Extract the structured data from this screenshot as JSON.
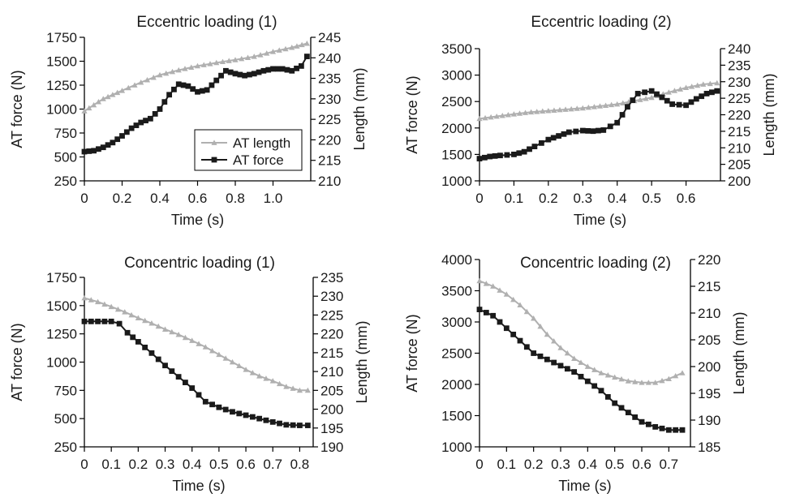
{
  "chart_data": [
    {
      "type": "line",
      "title": "Eccentric loading (1)",
      "xlabel": "Time (s)",
      "ylabel": "AT force (N)",
      "y2label": "Length (mm)",
      "xlim": [
        0,
        1.2
      ],
      "ylim": [
        250,
        1750
      ],
      "y2lim": [
        210,
        245
      ],
      "xticks": [
        "0",
        "0.2",
        "0.4",
        "0.6",
        "0.8",
        "1.0"
      ],
      "xtick_values": [
        0,
        0.2,
        0.4,
        0.6,
        0.8,
        1.0
      ],
      "yticks": [
        "250",
        "500",
        "750",
        "1000",
        "1250",
        "1500",
        "1750"
      ],
      "yticks2": [
        "210",
        "215",
        "220",
        "225",
        "230",
        "235",
        "240",
        "245"
      ],
      "legend": {
        "placement": "center",
        "entries": [
          "AT length",
          "AT force"
        ]
      },
      "series": [
        {
          "name": "AT length",
          "axis": "right",
          "color": "#b0b0b0",
          "marker": "triangle",
          "x": [
            0,
            0.05,
            0.1,
            0.15,
            0.2,
            0.3,
            0.4,
            0.5,
            0.6,
            0.7,
            0.8,
            0.9,
            1.0,
            1.1,
            1.18
          ],
          "y": [
            227,
            228.5,
            230,
            231,
            232,
            234,
            235.8,
            237,
            238,
            238.8,
            239.5,
            240.3,
            241.5,
            242.5,
            243.5
          ]
        },
        {
          "name": "AT force",
          "axis": "left",
          "color": "#1a1a1a",
          "marker": "square",
          "x": [
            0,
            0.05,
            0.1,
            0.15,
            0.2,
            0.25,
            0.3,
            0.35,
            0.4,
            0.45,
            0.5,
            0.55,
            0.6,
            0.65,
            0.7,
            0.75,
            0.8,
            0.85,
            0.9,
            0.95,
            1.0,
            1.05,
            1.1,
            1.15,
            1.18
          ],
          "y": [
            555,
            565,
            600,
            650,
            720,
            800,
            860,
            900,
            1000,
            1150,
            1260,
            1240,
            1180,
            1200,
            1300,
            1400,
            1370,
            1350,
            1370,
            1400,
            1420,
            1420,
            1400,
            1450,
            1550
          ]
        }
      ]
    },
    {
      "type": "line",
      "title": "Eccentric loading (2)",
      "xlabel": "Time (s)",
      "ylabel": "AT force (N)",
      "y2label": "Length (mm)",
      "xlim": [
        0,
        0.7
      ],
      "ylim": [
        1000,
        3500
      ],
      "y2lim": [
        200,
        240
      ],
      "xticks": [
        "0",
        "0.1",
        "0.2",
        "0.3",
        "0.4",
        "0.5",
        "0.6"
      ],
      "xtick_values": [
        0,
        0.1,
        0.2,
        0.3,
        0.4,
        0.5,
        0.6
      ],
      "yticks": [
        "1000",
        "1500",
        "2000",
        "2500",
        "3000",
        "3500"
      ],
      "yticks2": [
        "200",
        "205",
        "210",
        "215",
        "220",
        "225",
        "230",
        "235",
        "240"
      ],
      "series": [
        {
          "name": "AT length",
          "axis": "right",
          "color": "#b0b0b0",
          "marker": "triangle",
          "x": [
            0,
            0.05,
            0.1,
            0.15,
            0.2,
            0.25,
            0.3,
            0.35,
            0.4,
            0.45,
            0.5,
            0.55,
            0.6,
            0.65,
            0.69
          ],
          "y": [
            218.8,
            219.5,
            220.2,
            220.8,
            221.2,
            221.6,
            222,
            222.6,
            223.2,
            224.2,
            225.2,
            226.8,
            228.2,
            229.2,
            229.6
          ]
        },
        {
          "name": "AT force",
          "axis": "left",
          "color": "#1a1a1a",
          "marker": "square",
          "x": [
            0,
            0.03,
            0.06,
            0.1,
            0.13,
            0.16,
            0.2,
            0.23,
            0.26,
            0.3,
            0.33,
            0.36,
            0.4,
            0.43,
            0.46,
            0.5,
            0.53,
            0.56,
            0.6,
            0.63,
            0.66,
            0.69
          ],
          "y": [
            1420,
            1460,
            1480,
            1500,
            1550,
            1650,
            1780,
            1850,
            1920,
            1950,
            1940,
            1960,
            2100,
            2400,
            2650,
            2700,
            2580,
            2450,
            2430,
            2550,
            2650,
            2700
          ]
        }
      ]
    },
    {
      "type": "line",
      "title": "Concentric loading (1)",
      "xlabel": "Time (s)",
      "ylabel": "AT force (N)",
      "y2label": "Length (mm)",
      "xlim": [
        0,
        0.85
      ],
      "ylim": [
        250,
        1750
      ],
      "y2lim": [
        190,
        235
      ],
      "xticks": [
        "0",
        "0.1",
        "0.2",
        "0.3",
        "0.4",
        "0.5",
        "0.6",
        "0.7",
        "0.8"
      ],
      "xtick_values": [
        0,
        0.1,
        0.2,
        0.3,
        0.4,
        0.5,
        0.6,
        0.7,
        0.8
      ],
      "yticks": [
        "250",
        "500",
        "750",
        "1000",
        "1250",
        "1500",
        "1750"
      ],
      "yticks2": [
        "190",
        "195",
        "200",
        "205",
        "210",
        "215",
        "220",
        "225",
        "230",
        "235"
      ],
      "series": [
        {
          "name": "AT length",
          "axis": "right",
          "color": "#b0b0b0",
          "marker": "triangle",
          "x": [
            0,
            0.05,
            0.1,
            0.15,
            0.2,
            0.25,
            0.3,
            0.35,
            0.4,
            0.45,
            0.5,
            0.55,
            0.6,
            0.65,
            0.7,
            0.75,
            0.8,
            0.83
          ],
          "y": [
            229.5,
            228.5,
            227.2,
            225.8,
            224.2,
            222.8,
            221.2,
            219.8,
            218.2,
            216.5,
            214.5,
            212.5,
            210.5,
            208.8,
            207.5,
            206,
            205,
            205
          ]
        },
        {
          "name": "AT force",
          "axis": "left",
          "color": "#1a1a1a",
          "marker": "square",
          "x": [
            0,
            0.05,
            0.1,
            0.13,
            0.16,
            0.2,
            0.25,
            0.3,
            0.35,
            0.4,
            0.45,
            0.5,
            0.55,
            0.6,
            0.65,
            0.7,
            0.75,
            0.8,
            0.83
          ],
          "y": [
            1360,
            1360,
            1360,
            1340,
            1260,
            1180,
            1080,
            970,
            870,
            770,
            650,
            600,
            560,
            530,
            500,
            470,
            445,
            440,
            440
          ]
        }
      ]
    },
    {
      "type": "line",
      "title": "Concentric loading (2)",
      "xlabel": "Time (s)",
      "ylabel": "AT force (N)",
      "y2label": "Length (mm)",
      "xlim": [
        0,
        0.78
      ],
      "ylim": [
        1000,
        4000
      ],
      "y2lim": [
        185,
        220
      ],
      "xticks": [
        "0",
        "0.1",
        "0.2",
        "0.3",
        "0.4",
        "0.5",
        "0.6",
        "0.7"
      ],
      "xtick_values": [
        0,
        0.1,
        0.2,
        0.3,
        0.4,
        0.5,
        0.6,
        0.7
      ],
      "yticks": [
        "1000",
        "1500",
        "2000",
        "2500",
        "3000",
        "3500",
        "4000"
      ],
      "yticks2": [
        "185",
        "190",
        "195",
        "200",
        "205",
        "210",
        "215",
        "220"
      ],
      "series": [
        {
          "name": "AT length",
          "axis": "right",
          "color": "#b0b0b0",
          "marker": "triangle",
          "x": [
            0,
            0.05,
            0.1,
            0.15,
            0.2,
            0.25,
            0.3,
            0.35,
            0.4,
            0.45,
            0.5,
            0.55,
            0.6,
            0.65,
            0.7,
            0.75
          ],
          "y": [
            216,
            215,
            213.5,
            211.5,
            209,
            206,
            203.5,
            201.5,
            200,
            198.8,
            198,
            197.3,
            197,
            197,
            197.7,
            198.8
          ]
        },
        {
          "name": "AT force",
          "axis": "left",
          "color": "#1a1a1a",
          "marker": "square",
          "x": [
            0,
            0.05,
            0.1,
            0.15,
            0.2,
            0.25,
            0.3,
            0.35,
            0.4,
            0.45,
            0.5,
            0.55,
            0.6,
            0.65,
            0.7,
            0.75
          ],
          "y": [
            3200,
            3100,
            2900,
            2700,
            2500,
            2400,
            2300,
            2200,
            2050,
            1900,
            1700,
            1550,
            1400,
            1320,
            1270,
            1270
          ]
        }
      ]
    }
  ]
}
